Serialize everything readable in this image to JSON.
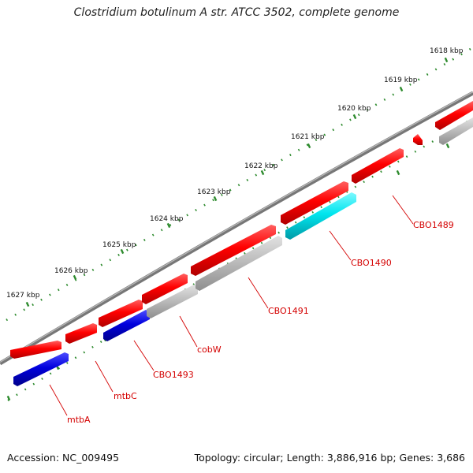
{
  "title": "Clostridium botulinum A str. ATCC 3502, complete genome",
  "footer": {
    "accession": "Accession: NC_009495",
    "summary": "Topology: circular; Length: 3,886,916 bp; Genes: 3,686"
  },
  "colors": {
    "backbone": "#777777",
    "tick": "#2e8b2e",
    "gene_label": "#d40000",
    "forward_cds": "#ff0000",
    "reverse_gene": "#0000dd",
    "highlight_gene": "#00e5ee",
    "other_gene": "#bbbbbb"
  },
  "ticks": [
    {
      "label": "1618 kbp"
    },
    {
      "label": "1619 kbp"
    },
    {
      "label": "1620 kbp"
    },
    {
      "label": "1621 kbp"
    },
    {
      "label": "1622 kbp"
    },
    {
      "label": "1623 kbp"
    },
    {
      "label": "1624 kbp"
    },
    {
      "label": "1625 kbp"
    },
    {
      "label": "1626 kbp"
    },
    {
      "label": "1627 kbp"
    }
  ],
  "genes": [
    {
      "label": "CBO1489",
      "color": "red"
    },
    {
      "label": "CBO1490",
      "color": "cyan"
    },
    {
      "label": "CBO1491",
      "color": "gray"
    },
    {
      "label": "cobW",
      "color": "gray"
    },
    {
      "label": "CBO1493",
      "color": "blue"
    },
    {
      "label": "mtbC",
      "color": "red"
    },
    {
      "label": "mtbA",
      "color": "blue"
    }
  ]
}
